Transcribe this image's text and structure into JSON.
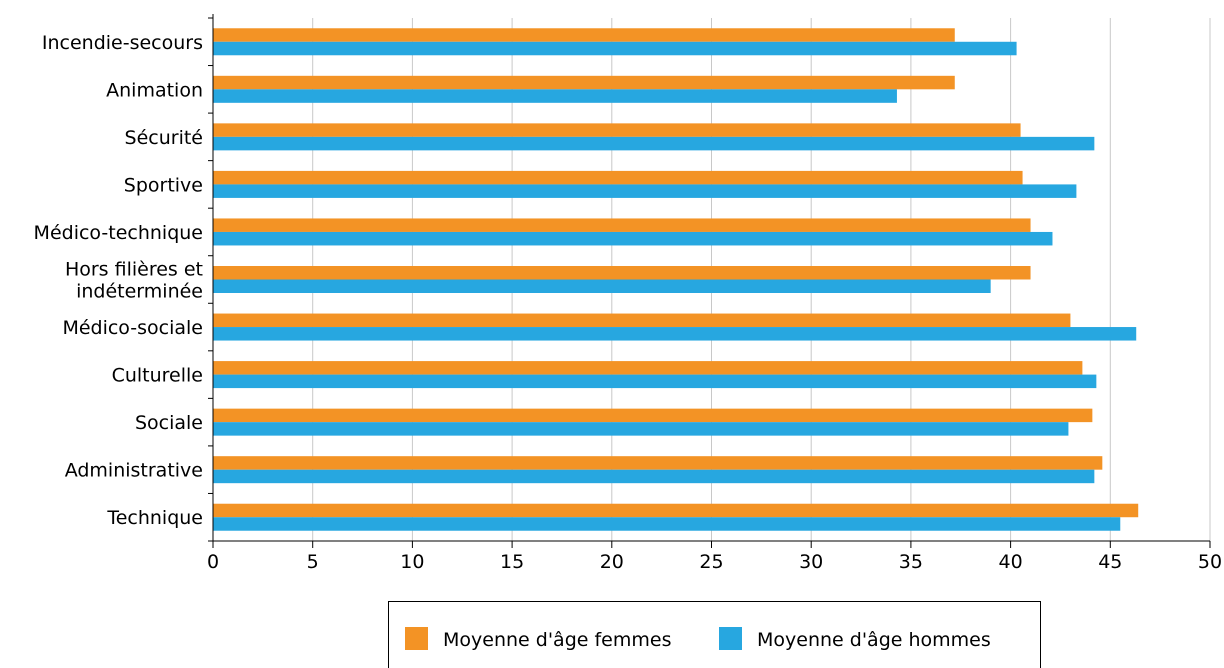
{
  "chart_data": {
    "type": "bar",
    "orientation": "horizontal",
    "categories": [
      [
        "Incendie-secours"
      ],
      [
        "Animation"
      ],
      [
        "Sécurité"
      ],
      [
        "Sportive"
      ],
      [
        "Médico-technique"
      ],
      [
        "Hors filières et",
        "indéterminée"
      ],
      [
        "Médico-sociale"
      ],
      [
        "Culturelle"
      ],
      [
        "Sociale"
      ],
      [
        "Administrative"
      ],
      [
        "Technique"
      ]
    ],
    "series": [
      {
        "name": "Moyenne d'âge femmes",
        "color": "#f39325",
        "values": [
          37.2,
          37.2,
          40.5,
          40.6,
          41.0,
          41.0,
          43.0,
          43.6,
          44.1,
          44.6,
          46.4
        ]
      },
      {
        "name": "Moyenne d'âge hommes",
        "color": "#27a7e0",
        "values": [
          40.3,
          34.3,
          44.2,
          43.3,
          42.1,
          39.0,
          46.3,
          44.3,
          42.9,
          44.2,
          45.5
        ]
      }
    ],
    "xlim": [
      0,
      50
    ],
    "xticks": [
      "0",
      "5",
      "10",
      "15",
      "20",
      "25",
      "30",
      "35",
      "40",
      "45",
      "50"
    ],
    "grid": "vertical",
    "legend_position": "bottom",
    "title": "",
    "xlabel": "",
    "ylabel": ""
  }
}
